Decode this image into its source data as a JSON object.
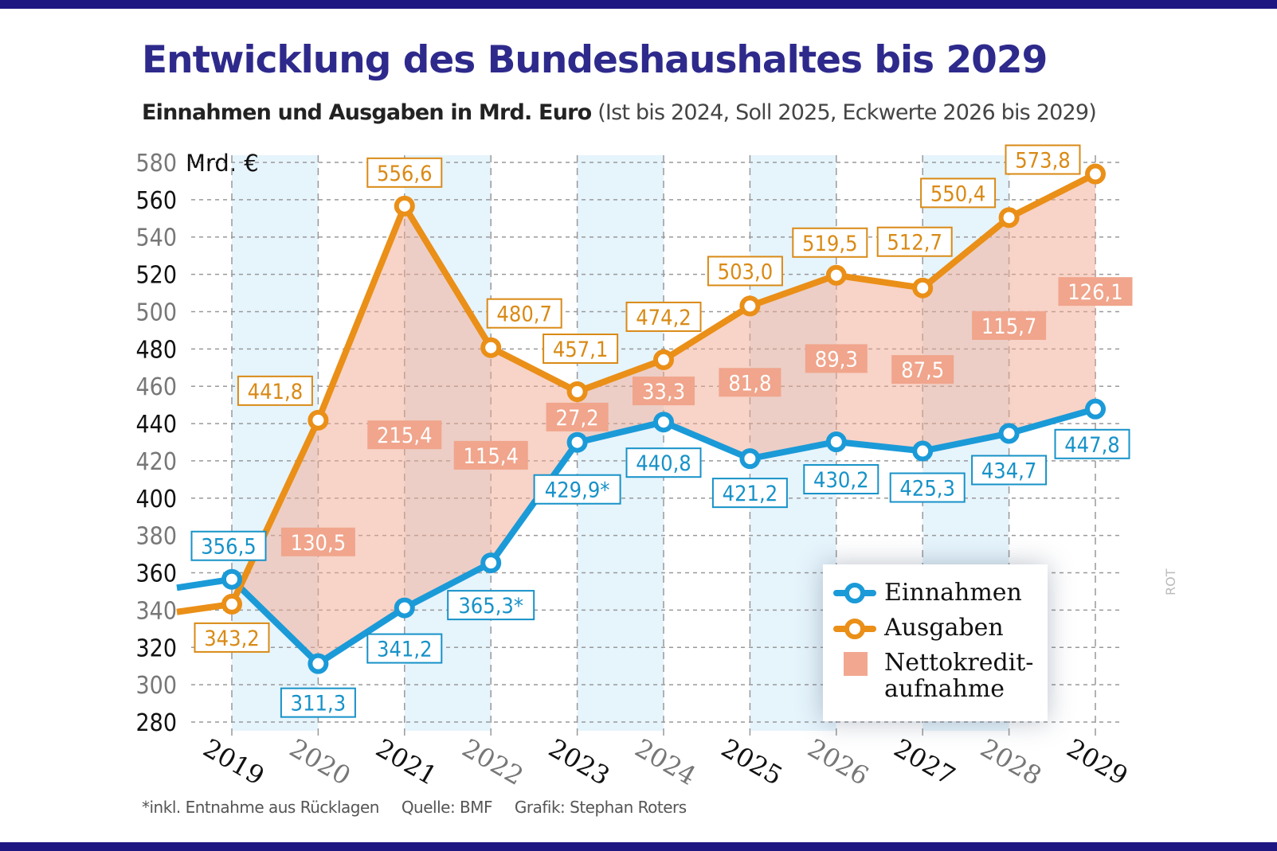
{
  "title": "Entwicklung des Bundeshaushaltes bis 2029",
  "subtitle_bold": "Einnahmen und Ausgaben in Mrd. Euro",
  "subtitle_note": "(Ist bis 2024, Soll 2025, Eckwerte 2026 bis 2029)",
  "footer": {
    "footnote": "*inkl. Entnahme aus Rücklagen",
    "source": "Quelle: BMF",
    "credit": "Grafik: Stephan Roters"
  },
  "watermark": "ROT",
  "colors": {
    "einnahmen": "#1b9ad8",
    "ausgaben": "#ea8f17",
    "netto": "#f2a890",
    "title": "#2e2a8c",
    "band": "#e6f4fc"
  },
  "chart_data": {
    "type": "line",
    "title": "Entwicklung des Bundeshaushaltes bis 2029",
    "ylabel": "Mrd. €",
    "ylim": [
      280,
      580
    ],
    "yticks": [
      280,
      300,
      320,
      340,
      360,
      380,
      400,
      420,
      440,
      460,
      480,
      500,
      520,
      540,
      560,
      580
    ],
    "grid": true,
    "legend_position": "bottom-right",
    "categories": [
      "2019",
      "2020",
      "2021",
      "2022",
      "2023",
      "2024",
      "2025",
      "2026",
      "2027",
      "2028",
      "2029"
    ],
    "series": [
      {
        "name": "Einnahmen",
        "values": [
          356.5,
          311.3,
          341.2,
          365.3,
          429.9,
          440.8,
          421.2,
          430.2,
          425.3,
          434.7,
          447.8
        ],
        "labels": [
          "356,5",
          "311,3",
          "341,2",
          "365,3*",
          "429,9*",
          "440,8",
          "421,2",
          "430,2",
          "425,3",
          "434,7",
          "447,8"
        ]
      },
      {
        "name": "Ausgaben",
        "values": [
          343.2,
          441.8,
          556.6,
          480.7,
          457.1,
          474.2,
          503.0,
          519.5,
          512.7,
          550.4,
          573.8
        ],
        "labels": [
          "343,2",
          "441,8",
          "556,6",
          "480,7",
          "457,1",
          "474,2",
          "503,0",
          "519,5",
          "512,7",
          "550,4",
          "573,8"
        ]
      },
      {
        "name": "Nettokreditaufnahme",
        "type": "area",
        "values": [
          null,
          130.5,
          215.4,
          115.4,
          27.2,
          33.3,
          81.8,
          89.3,
          87.5,
          115.7,
          126.1
        ],
        "labels": [
          "",
          "130,5",
          "215,4",
          "115,4",
          "27,2",
          "33,3",
          "81,8",
          "89,3",
          "87,5",
          "115,7",
          "126,1"
        ]
      }
    ],
    "legend": [
      "Einnahmen",
      "Ausgaben",
      "Nettokredit-",
      "aufnahme"
    ]
  }
}
